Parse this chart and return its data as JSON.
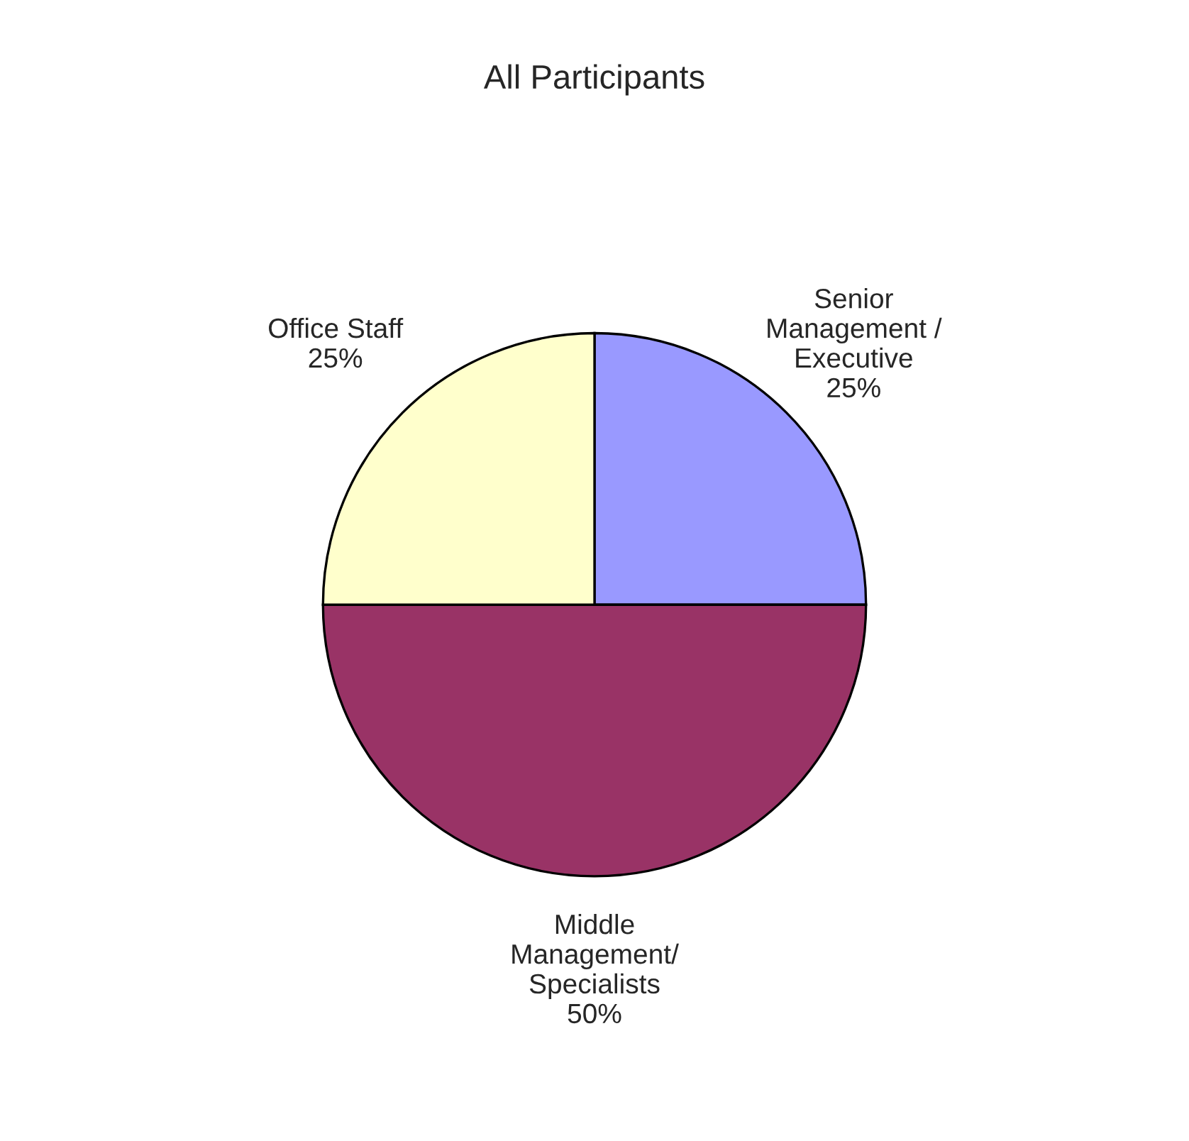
{
  "chart_data": {
    "type": "pie",
    "title": "All Participants",
    "categories": [
      "Senior\nManagement /\nExecutive",
      "Middle\nManagement/\nSpecialists",
      "Office Staff"
    ],
    "values": [
      25,
      50,
      25
    ],
    "value_labels": [
      "25%",
      "50%",
      "25%"
    ],
    "colors": [
      "#9999ff",
      "#993366",
      "#ffffcc"
    ],
    "legend": false
  }
}
